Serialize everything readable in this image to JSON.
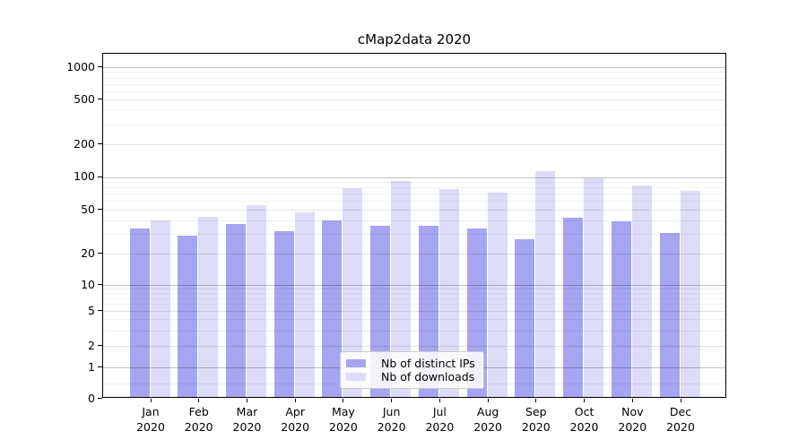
{
  "chart_data": {
    "type": "bar",
    "title": "cMap2data 2020",
    "categories": [
      "Jan",
      "Feb",
      "Mar",
      "Apr",
      "May",
      "Jun",
      "Jul",
      "Aug",
      "Sep",
      "Oct",
      "Nov",
      "Dec"
    ],
    "year_label": "2020",
    "series": [
      {
        "name": "Nb of distinct IPs",
        "color": "#a5a5f1",
        "values": [
          34,
          29,
          37,
          32,
          40,
          36,
          36,
          34,
          27,
          42,
          39,
          31
        ]
      },
      {
        "name": "Nb of downloads",
        "color": "#dcdcf9",
        "values": [
          40,
          43,
          55,
          47,
          79,
          92,
          78,
          72,
          113,
          97,
          83,
          74
        ]
      }
    ],
    "xlabel": "",
    "ylabel": "",
    "yscale": "log (with zero baseline, compressed first decade)",
    "yticks": [
      0,
      1,
      2,
      5,
      10,
      20,
      50,
      100,
      200,
      500,
      1000
    ],
    "ylim": [
      0,
      1330
    ],
    "grid": true,
    "legend_position": "lower center, inside axes"
  }
}
